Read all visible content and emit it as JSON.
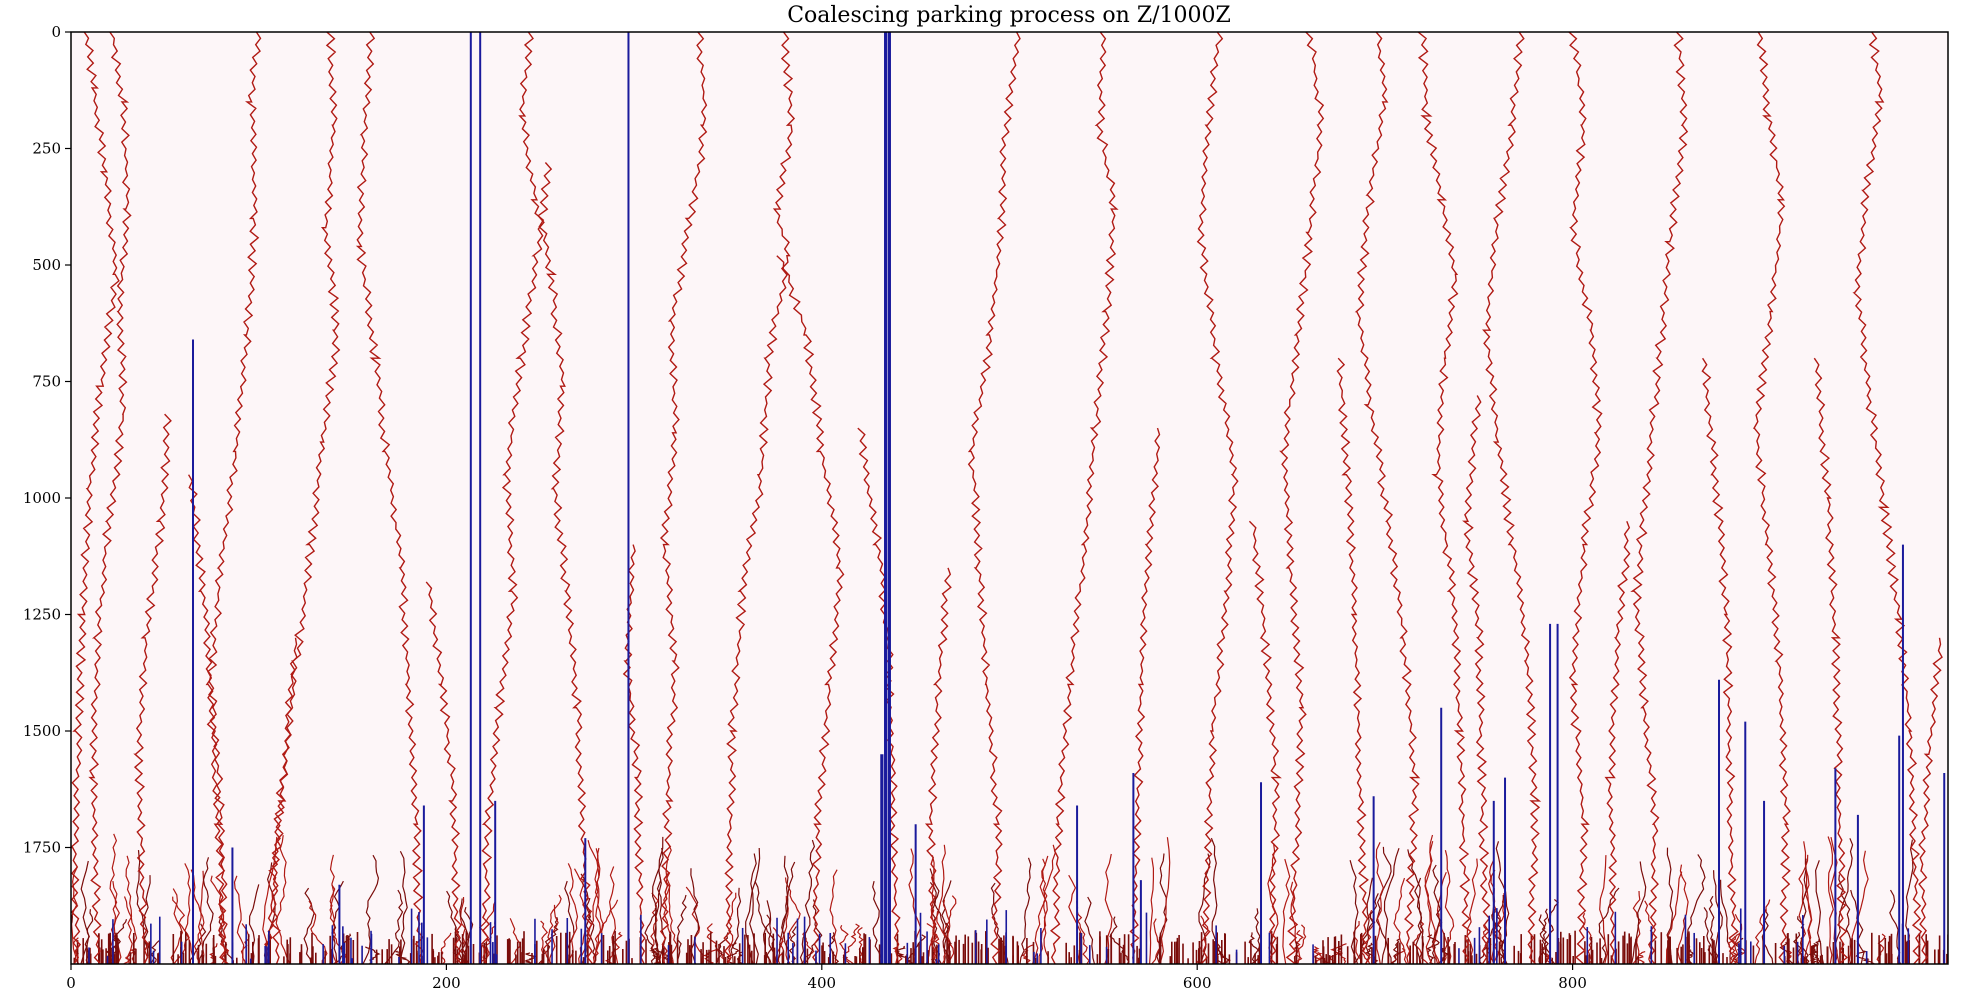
{
  "chart_data": {
    "type": "line",
    "title": "Coalescing parking process on Z/1000Z",
    "xlabel": "",
    "ylabel": "",
    "xlim": [
      0,
      1000
    ],
    "ylim": [
      0,
      2000
    ],
    "y_inverted": true,
    "grid": false,
    "legend": "none",
    "xticks": [
      0,
      200,
      400,
      600,
      800
    ],
    "yticks": [
      0,
      250,
      500,
      750,
      1000,
      1250,
      1500,
      1750
    ],
    "colors": {
      "background": "#fdf6f8",
      "paths": "#b01a14",
      "parked": "#1a1a9c",
      "dense": "#7a0c0a"
    },
    "series": [
      {
        "values": [
          [
            8,
            0
          ],
          [
            12,
            120
          ],
          [
            18,
            300
          ],
          [
            24,
            520
          ],
          [
            16,
            760
          ],
          [
            10,
            980
          ],
          [
            6,
            1250
          ],
          [
            4,
            1500
          ],
          [
            2,
            1750
          ],
          [
            3,
            2000
          ]
        ]
      },
      {
        "values": [
          [
            22,
            0
          ],
          [
            28,
            150
          ],
          [
            30,
            380
          ],
          [
            26,
            600
          ],
          [
            28,
            820
          ],
          [
            20,
            1050
          ],
          [
            14,
            1300
          ],
          [
            12,
            1600
          ],
          [
            14,
            2000
          ]
        ]
      },
      {
        "values": [
          [
            100,
            0
          ],
          [
            96,
            150
          ],
          [
            98,
            400
          ],
          [
            94,
            650
          ],
          [
            88,
            900
          ],
          [
            80,
            1150
          ],
          [
            74,
            1400
          ],
          [
            78,
            1700
          ],
          [
            82,
            2000
          ]
        ]
      },
      {
        "values": [
          [
            138,
            0
          ],
          [
            140,
            200
          ],
          [
            136,
            420
          ],
          [
            142,
            640
          ],
          [
            134,
            880
          ],
          [
            128,
            1100
          ],
          [
            120,
            1350
          ],
          [
            112,
            1650
          ],
          [
            104,
            2000
          ]
        ]
      },
      {
        "values": [
          [
            160,
            0
          ],
          [
            156,
            220
          ],
          [
            154,
            460
          ],
          [
            162,
            700
          ],
          [
            168,
            900
          ],
          [
            176,
            1150
          ],
          [
            180,
            1400
          ],
          [
            184,
            1700
          ],
          [
            186,
            2000
          ]
        ]
      },
      {
        "values": [
          [
            245,
            0
          ],
          [
            240,
            180
          ],
          [
            248,
            360
          ],
          [
            256,
            520
          ],
          [
            262,
            760
          ],
          [
            258,
            980
          ],
          [
            264,
            1200
          ],
          [
            270,
            1450
          ],
          [
            276,
            2000
          ]
        ]
      },
      {
        "values": [
          [
            255,
            280
          ],
          [
            248,
            480
          ],
          [
            240,
            700
          ],
          [
            232,
            950
          ],
          [
            236,
            1200
          ],
          [
            228,
            1450
          ],
          [
            222,
            1700
          ],
          [
            220,
            2000
          ]
        ]
      },
      {
        "values": [
          [
            335,
            0
          ],
          [
            338,
            200
          ],
          [
            330,
            400
          ],
          [
            320,
            620
          ],
          [
            322,
            860
          ],
          [
            316,
            1100
          ],
          [
            322,
            1350
          ],
          [
            318,
            1650
          ],
          [
            316,
            2000
          ]
        ]
      },
      {
        "values": [
          [
            380,
            0
          ],
          [
            384,
            200
          ],
          [
            376,
            380
          ],
          [
            382,
            480
          ],
          [
            372,
            700
          ],
          [
            368,
            950
          ],
          [
            358,
            1200
          ],
          [
            352,
            1500
          ],
          [
            350,
            2000
          ]
        ]
      },
      {
        "values": [
          [
            378,
            480
          ],
          [
            392,
            650
          ],
          [
            400,
            900
          ],
          [
            410,
            1150
          ],
          [
            404,
            1400
          ],
          [
            398,
            1700
          ],
          [
            396,
            2000
          ]
        ]
      },
      {
        "values": [
          [
            505,
            0
          ],
          [
            498,
            200
          ],
          [
            496,
            400
          ],
          [
            490,
            650
          ],
          [
            480,
            900
          ],
          [
            484,
            1150
          ],
          [
            488,
            1400
          ],
          [
            494,
            1700
          ],
          [
            492,
            2000
          ]
        ]
      },
      {
        "values": [
          [
            550,
            0
          ],
          [
            548,
            200
          ],
          [
            556,
            380
          ],
          [
            552,
            600
          ],
          [
            546,
            850
          ],
          [
            540,
            1100
          ],
          [
            532,
            1400
          ],
          [
            526,
            1700
          ],
          [
            524,
            2000
          ]
        ]
      },
      {
        "values": [
          [
            612,
            0
          ],
          [
            606,
            200
          ],
          [
            602,
            450
          ],
          [
            610,
            700
          ],
          [
            620,
            950
          ],
          [
            616,
            1200
          ],
          [
            608,
            1500
          ],
          [
            604,
            2000
          ]
        ]
      },
      {
        "values": [
          [
            660,
            0
          ],
          [
            666,
            200
          ],
          [
            660,
            430
          ],
          [
            654,
            650
          ],
          [
            646,
            900
          ],
          [
            650,
            1150
          ],
          [
            656,
            1450
          ],
          [
            650,
            2000
          ]
        ]
      },
      {
        "values": [
          [
            696,
            0
          ],
          [
            700,
            150
          ],
          [
            692,
            350
          ],
          [
            686,
            600
          ],
          [
            692,
            800
          ],
          [
            702,
            1050
          ],
          [
            710,
            1300
          ],
          [
            716,
            1600
          ],
          [
            712,
            2000
          ]
        ]
      },
      {
        "values": [
          [
            720,
            0
          ],
          [
            722,
            180
          ],
          [
            730,
            360
          ],
          [
            738,
            520
          ],
          [
            732,
            700
          ],
          [
            728,
            950
          ],
          [
            736,
            1200
          ],
          [
            740,
            1500
          ],
          [
            744,
            2000
          ]
        ]
      },
      {
        "values": [
          [
            772,
            0
          ],
          [
            768,
            200
          ],
          [
            760,
            400
          ],
          [
            754,
            640
          ],
          [
            760,
            880
          ],
          [
            768,
            1100
          ],
          [
            776,
            1350
          ],
          [
            780,
            1650
          ],
          [
            778,
            2000
          ]
        ]
      },
      {
        "values": [
          [
            800,
            0
          ],
          [
            806,
            200
          ],
          [
            800,
            420
          ],
          [
            810,
            640
          ],
          [
            814,
            860
          ],
          [
            806,
            1100
          ],
          [
            800,
            1400
          ],
          [
            806,
            1700
          ],
          [
            804,
            2000
          ]
        ]
      },
      {
        "values": [
          [
            856,
            0
          ],
          [
            860,
            200
          ],
          [
            852,
            450
          ],
          [
            846,
            700
          ],
          [
            840,
            950
          ],
          [
            834,
            1200
          ],
          [
            838,
            1450
          ],
          [
            844,
            1700
          ],
          [
            842,
            2000
          ]
        ]
      },
      {
        "values": [
          [
            900,
            0
          ],
          [
            904,
            180
          ],
          [
            912,
            360
          ],
          [
            906,
            600
          ],
          [
            898,
            850
          ],
          [
            904,
            1100
          ],
          [
            910,
            1350
          ],
          [
            914,
            1700
          ],
          [
            912,
            2000
          ]
        ]
      },
      {
        "values": [
          [
            960,
            0
          ],
          [
            964,
            150
          ],
          [
            956,
            340
          ],
          [
            952,
            560
          ],
          [
            958,
            780
          ],
          [
            966,
            1020
          ],
          [
            974,
            1260
          ],
          [
            980,
            1500
          ],
          [
            984,
            2000
          ]
        ]
      },
      {
        "values": [
          [
            52,
            820
          ],
          [
            48,
            1050
          ],
          [
            40,
            1300
          ],
          [
            36,
            1550
          ],
          [
            38,
            1800
          ],
          [
            40,
            2000
          ]
        ]
      },
      {
        "values": [
          [
            64,
            950
          ],
          [
            70,
            1200
          ],
          [
            76,
            1450
          ],
          [
            80,
            1700
          ],
          [
            82,
            2000
          ]
        ]
      },
      {
        "values": [
          [
            120,
            1300
          ],
          [
            114,
            1550
          ],
          [
            108,
            1800
          ],
          [
            110,
            2000
          ]
        ]
      },
      {
        "values": [
          [
            190,
            1180
          ],
          [
            198,
            1400
          ],
          [
            204,
            1650
          ],
          [
            206,
            2000
          ]
        ]
      },
      {
        "values": [
          [
            300,
            1100
          ],
          [
            296,
            1350
          ],
          [
            302,
            1600
          ],
          [
            304,
            2000
          ]
        ]
      },
      {
        "values": [
          [
            420,
            850
          ],
          [
            430,
            1100
          ],
          [
            436,
            1350
          ],
          [
            440,
            2000
          ]
        ]
      },
      {
        "values": [
          [
            468,
            1150
          ],
          [
            462,
            1400
          ],
          [
            458,
            1700
          ],
          [
            460,
            2000
          ]
        ]
      },
      {
        "values": [
          [
            580,
            850
          ],
          [
            574,
            1100
          ],
          [
            570,
            1400
          ],
          [
            566,
            2000
          ]
        ]
      },
      {
        "values": [
          [
            630,
            1050
          ],
          [
            636,
            1300
          ],
          [
            642,
            1600
          ],
          [
            640,
            2000
          ]
        ]
      },
      {
        "values": [
          [
            676,
            700
          ],
          [
            680,
            950
          ],
          [
            684,
            1250
          ],
          [
            690,
            2000
          ]
        ]
      },
      {
        "values": [
          [
            750,
            780
          ],
          [
            744,
            1050
          ],
          [
            750,
            1300
          ],
          [
            754,
            2000
          ]
        ]
      },
      {
        "values": [
          [
            830,
            1050
          ],
          [
            824,
            1300
          ],
          [
            820,
            1600
          ],
          [
            822,
            2000
          ]
        ]
      },
      {
        "values": [
          [
            870,
            700
          ],
          [
            876,
            950
          ],
          [
            882,
            1250
          ],
          [
            886,
            2000
          ]
        ]
      },
      {
        "values": [
          [
            930,
            700
          ],
          [
            936,
            1000
          ],
          [
            940,
            1300
          ],
          [
            944,
            2000
          ]
        ]
      },
      {
        "values": [
          [
            996,
            1300
          ],
          [
            990,
            1550
          ],
          [
            986,
            1800
          ],
          [
            988,
            2000
          ]
        ]
      }
    ],
    "parked_bars": [
      {
        "x": 65,
        "top": 660
      },
      {
        "x": 213,
        "top": 0
      },
      {
        "x": 218,
        "top": 0
      },
      {
        "x": 226,
        "top": 1650
      },
      {
        "x": 297,
        "top": 0
      },
      {
        "x": 297,
        "top": 1270
      },
      {
        "x": 434,
        "top": 0
      },
      {
        "x": 436,
        "top": 0
      },
      {
        "x": 188,
        "top": 1660
      },
      {
        "x": 86,
        "top": 1750
      },
      {
        "x": 143,
        "top": 1830
      },
      {
        "x": 274,
        "top": 1730
      },
      {
        "x": 432,
        "top": 1550
      },
      {
        "x": 450,
        "top": 1700
      },
      {
        "x": 536,
        "top": 1660
      },
      {
        "x": 566,
        "top": 1590
      },
      {
        "x": 570,
        "top": 1820
      },
      {
        "x": 634,
        "top": 1610
      },
      {
        "x": 694,
        "top": 1640
      },
      {
        "x": 730,
        "top": 1450
      },
      {
        "x": 758,
        "top": 1650
      },
      {
        "x": 764,
        "top": 1600
      },
      {
        "x": 788,
        "top": 1270
      },
      {
        "x": 792,
        "top": 1270
      },
      {
        "x": 878,
        "top": 1390
      },
      {
        "x": 892,
        "top": 1480
      },
      {
        "x": 902,
        "top": 1650
      },
      {
        "x": 940,
        "top": 1580
      },
      {
        "x": 952,
        "top": 1680
      },
      {
        "x": 974,
        "top": 1510
      },
      {
        "x": 976,
        "top": 1100
      },
      {
        "x": 998,
        "top": 1590
      }
    ]
  }
}
